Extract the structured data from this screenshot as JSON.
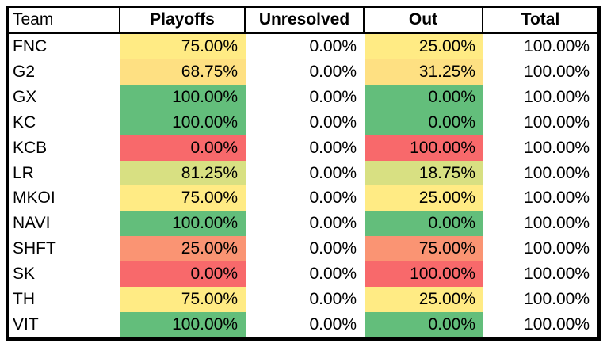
{
  "table": {
    "header": {
      "team": "Team",
      "playoffs": "Playoffs",
      "unresolved": "Unresolved",
      "out": "Out",
      "total": "Total"
    },
    "column_keys": [
      "team",
      "playoffs",
      "unresolved",
      "out",
      "total"
    ],
    "rows": [
      {
        "cells": [
          {
            "text": "FNC"
          },
          {
            "text": "75.00%",
            "bg": "#FFEB84"
          },
          {
            "text": "0.00%"
          },
          {
            "text": "25.00%",
            "bg": "#FFEB84"
          },
          {
            "text": "100.00%"
          }
        ]
      },
      {
        "cells": [
          {
            "text": "G2"
          },
          {
            "text": "68.75%",
            "bg": "#FEE082"
          },
          {
            "text": "0.00%"
          },
          {
            "text": "31.25%",
            "bg": "#FEE082"
          },
          {
            "text": "100.00%"
          }
        ]
      },
      {
        "cells": [
          {
            "text": "GX"
          },
          {
            "text": "100.00%",
            "bg": "#63BE7B"
          },
          {
            "text": "0.00%"
          },
          {
            "text": "0.00%",
            "bg": "#63BE7B"
          },
          {
            "text": "100.00%"
          }
        ]
      },
      {
        "cells": [
          {
            "text": "KC"
          },
          {
            "text": "100.00%",
            "bg": "#63BE7B"
          },
          {
            "text": "0.00%"
          },
          {
            "text": "0.00%",
            "bg": "#63BE7B"
          },
          {
            "text": "100.00%"
          }
        ]
      },
      {
        "cells": [
          {
            "text": "KCB"
          },
          {
            "text": "0.00%",
            "bg": "#F8696B"
          },
          {
            "text": "0.00%"
          },
          {
            "text": "100.00%",
            "bg": "#F8696B"
          },
          {
            "text": "100.00%"
          }
        ]
      },
      {
        "cells": [
          {
            "text": "LR"
          },
          {
            "text": "81.25%",
            "bg": "#D8E082"
          },
          {
            "text": "0.00%"
          },
          {
            "text": "18.75%",
            "bg": "#D8E082"
          },
          {
            "text": "100.00%"
          }
        ]
      },
      {
        "cells": [
          {
            "text": "MKOI"
          },
          {
            "text": "75.00%",
            "bg": "#FFEB84"
          },
          {
            "text": "0.00%"
          },
          {
            "text": "25.00%",
            "bg": "#FFEB84"
          },
          {
            "text": "100.00%"
          }
        ]
      },
      {
        "cells": [
          {
            "text": "NAVI"
          },
          {
            "text": "100.00%",
            "bg": "#63BE7B"
          },
          {
            "text": "0.00%"
          },
          {
            "text": "0.00%",
            "bg": "#63BE7B"
          },
          {
            "text": "100.00%"
          }
        ]
      },
      {
        "cells": [
          {
            "text": "SHFT"
          },
          {
            "text": "25.00%",
            "bg": "#FA9473"
          },
          {
            "text": "0.00%"
          },
          {
            "text": "75.00%",
            "bg": "#FA9473"
          },
          {
            "text": "100.00%"
          }
        ]
      },
      {
        "cells": [
          {
            "text": "SK"
          },
          {
            "text": "0.00%",
            "bg": "#F8696B"
          },
          {
            "text": "0.00%"
          },
          {
            "text": "100.00%",
            "bg": "#F8696B"
          },
          {
            "text": "100.00%"
          }
        ]
      },
      {
        "cells": [
          {
            "text": "TH"
          },
          {
            "text": "75.00%",
            "bg": "#FFEB84"
          },
          {
            "text": "0.00%"
          },
          {
            "text": "25.00%",
            "bg": "#FFEB84"
          },
          {
            "text": "100.00%"
          }
        ]
      },
      {
        "cells": [
          {
            "text": "VIT"
          },
          {
            "text": "100.00%",
            "bg": "#63BE7B"
          },
          {
            "text": "0.00%"
          },
          {
            "text": "0.00%",
            "bg": "#63BE7B"
          },
          {
            "text": "100.00%"
          }
        ]
      }
    ]
  },
  "colors": {
    "border": "#000000",
    "background": "#FFFFFF",
    "scale_green": "#63BE7B",
    "scale_yellow": "#FFEB84",
    "scale_red": "#F8696B",
    "scale_yellow_green": "#D8E082",
    "scale_golden_yellow": "#FEE082",
    "scale_orange_salmon": "#FA9473"
  },
  "chart_data": {
    "type": "table",
    "columns": [
      "Team",
      "Playoffs",
      "Unresolved",
      "Out",
      "Total"
    ],
    "categories": [
      "FNC",
      "G2",
      "GX",
      "KC",
      "KCB",
      "LR",
      "MKOI",
      "NAVI",
      "SHFT",
      "SK",
      "TH",
      "VIT"
    ],
    "series": [
      {
        "name": "Playoffs",
        "unit": "%",
        "values": [
          75,
          68.75,
          100,
          100,
          0,
          81.25,
          75,
          100,
          25,
          0,
          75,
          100
        ]
      },
      {
        "name": "Unresolved",
        "unit": "%",
        "values": [
          0,
          0,
          0,
          0,
          0,
          0,
          0,
          0,
          0,
          0,
          0,
          0
        ]
      },
      {
        "name": "Out",
        "unit": "%",
        "values": [
          25,
          31.25,
          0,
          0,
          100,
          18.75,
          25,
          0,
          75,
          100,
          25,
          0
        ]
      },
      {
        "name": "Total",
        "unit": "%",
        "values": [
          100,
          100,
          100,
          100,
          100,
          100,
          100,
          100,
          100,
          100,
          100,
          100
        ]
      }
    ],
    "layout": {
      "header_bold": true,
      "value_align": "right",
      "conditional_formatting": "red-yellow-green scale on Playoffs (high=green) and Out (high=red) columns"
    }
  }
}
